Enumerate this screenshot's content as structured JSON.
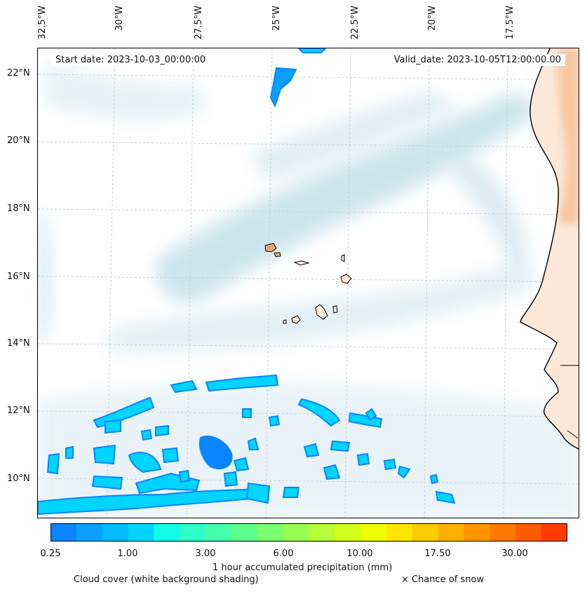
{
  "header": {
    "start_date": "Start date: 2023-10-03_00:00:00",
    "valid_date": "Valid_date: 2023-10-05T12:00:00.00"
  },
  "axes": {
    "lon_ticks": [
      "32.5°W",
      "30°W",
      "27.5°W",
      "25°W",
      "22.5°W",
      "20°W",
      "17.5°W"
    ],
    "lat_ticks": [
      "22°N",
      "20°N",
      "18°N",
      "16°N",
      "14°N",
      "12°N",
      "10°N"
    ]
  },
  "colorbar": {
    "tick_labels": [
      "0.25",
      "1.00",
      "3.00",
      "6.00",
      "10.00",
      "17.50",
      "30.00"
    ],
    "colors": [
      "#0a84ff",
      "#0aa0ff",
      "#00bbff",
      "#00d4ff",
      "#10ffe6",
      "#2cffc8",
      "#46ffaa",
      "#5fff8c",
      "#7aff6e",
      "#96ff52",
      "#b4ff36",
      "#d4ff1a",
      "#f0ff00",
      "#ffe600",
      "#ffcc00",
      "#ffb000",
      "#ff9400",
      "#ff7800",
      "#ff5c00",
      "#ff3c00"
    ],
    "title": "1 hour accumulated precipitation (mm)"
  },
  "legend": {
    "cloud_cover": "Cloud cover (white background shading)",
    "snow": "× Chance of snow"
  },
  "colors": {
    "cloud": "#bcdde8",
    "precip_light": "#00d4ff",
    "precip_mid": "#0aa0ff",
    "land": "#f7c9a6",
    "land_dark": "#f0a36b"
  }
}
